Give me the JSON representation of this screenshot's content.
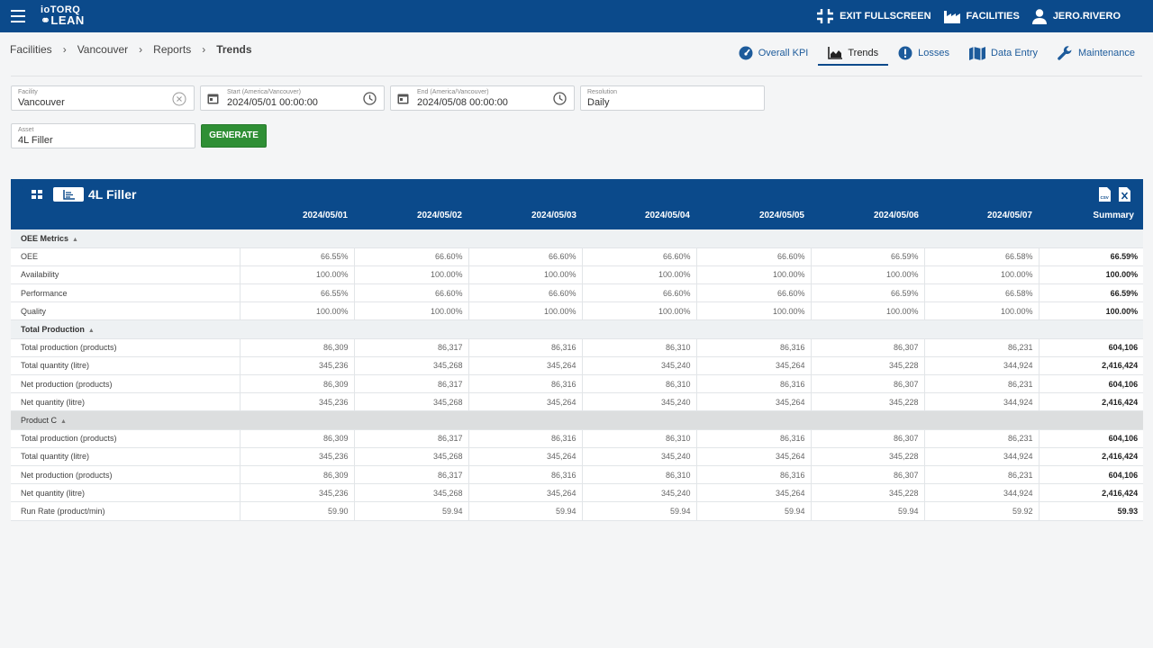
{
  "app": {
    "logo_line1": "ioTORQ",
    "logo_line2": "LEAN"
  },
  "topbar": {
    "exit_fullscreen": "EXIT FULLSCREEN",
    "facilities": "FACILITIES",
    "user": "JERO.RIVERO"
  },
  "breadcrumb": [
    "Facilities",
    "Vancouver",
    "Reports",
    "Trends"
  ],
  "navtabs": [
    "Overall KPI",
    "Trends",
    "Losses",
    "Data Entry",
    "Maintenance"
  ],
  "filters": {
    "facility": {
      "label": "Facility",
      "value": "Vancouver"
    },
    "start": {
      "label": "Start (America/Vancouver)",
      "value": "2024/05/01 00:00:00"
    },
    "end": {
      "label": "End (America/Vancouver)",
      "value": "2024/05/08 00:00:00"
    },
    "resolution": {
      "label": "Resolution",
      "value": "Daily"
    },
    "asset": {
      "label": "Asset",
      "value": "4L Filler"
    },
    "generate": "GENERATE"
  },
  "panel": {
    "title": "4L Filler",
    "columns": [
      "2024/05/01",
      "2024/05/02",
      "2024/05/03",
      "2024/05/04",
      "2024/05/05",
      "2024/05/06",
      "2024/05/07",
      "Summary"
    ]
  },
  "rows": [
    {
      "type": "group",
      "label": "OEE Metrics"
    },
    {
      "type": "row",
      "label": "OEE",
      "values": [
        "66.55%",
        "66.60%",
        "66.60%",
        "66.60%",
        "66.60%",
        "66.59%",
        "66.58%"
      ],
      "summary": "66.59%"
    },
    {
      "type": "row",
      "label": "Availability",
      "values": [
        "100.00%",
        "100.00%",
        "100.00%",
        "100.00%",
        "100.00%",
        "100.00%",
        "100.00%"
      ],
      "summary": "100.00%"
    },
    {
      "type": "row",
      "label": "Performance",
      "values": [
        "66.55%",
        "66.60%",
        "66.60%",
        "66.60%",
        "66.60%",
        "66.59%",
        "66.58%"
      ],
      "summary": "66.59%"
    },
    {
      "type": "row",
      "label": "Quality",
      "values": [
        "100.00%",
        "100.00%",
        "100.00%",
        "100.00%",
        "100.00%",
        "100.00%",
        "100.00%"
      ],
      "summary": "100.00%"
    },
    {
      "type": "group",
      "label": "Total Production"
    },
    {
      "type": "row",
      "label": "Total production (products)",
      "values": [
        "86,309",
        "86,317",
        "86,316",
        "86,310",
        "86,316",
        "86,307",
        "86,231"
      ],
      "summary": "604,106"
    },
    {
      "type": "row",
      "label": "Total quantity (litre)",
      "values": [
        "345,236",
        "345,268",
        "345,264",
        "345,240",
        "345,264",
        "345,228",
        "344,924"
      ],
      "summary": "2,416,424"
    },
    {
      "type": "row",
      "label": "Net production (products)",
      "values": [
        "86,309",
        "86,317",
        "86,316",
        "86,310",
        "86,316",
        "86,307",
        "86,231"
      ],
      "summary": "604,106"
    },
    {
      "type": "row",
      "label": "Net quantity (litre)",
      "values": [
        "345,236",
        "345,268",
        "345,264",
        "345,240",
        "345,264",
        "345,228",
        "344,924"
      ],
      "summary": "2,416,424"
    },
    {
      "type": "group",
      "label": "Product C",
      "shade": true
    },
    {
      "type": "row",
      "label": "Total production (products)",
      "values": [
        "86,309",
        "86,317",
        "86,316",
        "86,310",
        "86,316",
        "86,307",
        "86,231"
      ],
      "summary": "604,106"
    },
    {
      "type": "row",
      "label": "Total quantity (litre)",
      "values": [
        "345,236",
        "345,268",
        "345,264",
        "345,240",
        "345,264",
        "345,228",
        "344,924"
      ],
      "summary": "2,416,424"
    },
    {
      "type": "row",
      "label": "Net production (products)",
      "values": [
        "86,309",
        "86,317",
        "86,316",
        "86,310",
        "86,316",
        "86,307",
        "86,231"
      ],
      "summary": "604,106"
    },
    {
      "type": "row",
      "label": "Net quantity (litre)",
      "values": [
        "345,236",
        "345,268",
        "345,264",
        "345,240",
        "345,264",
        "345,228",
        "344,924"
      ],
      "summary": "2,416,424"
    },
    {
      "type": "row",
      "label": "Run Rate (product/min)",
      "values": [
        "59.90",
        "59.94",
        "59.94",
        "59.94",
        "59.94",
        "59.94",
        "59.92"
      ],
      "summary": "59.93"
    }
  ]
}
